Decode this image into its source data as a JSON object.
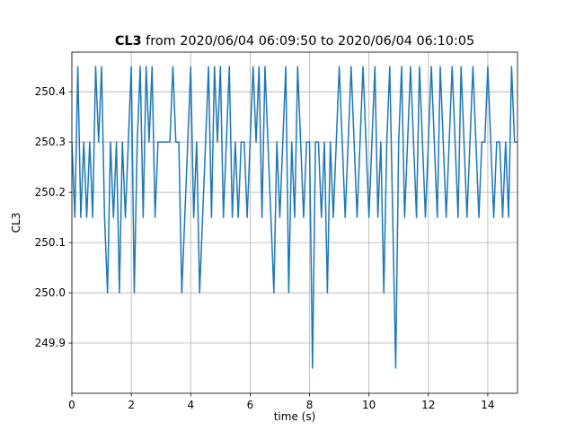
{
  "chart_data": {
    "type": "line",
    "title": {
      "bold": "CL3",
      "text": "from 2020/06/04 06:09:50 to 2020/06/04 06:10:05"
    },
    "xlabel": "time (s)",
    "ylabel": "CL3",
    "xlim": [
      0,
      15
    ],
    "xticks": [
      0,
      2,
      4,
      6,
      8,
      10,
      12,
      14
    ],
    "ylim": [
      249.8,
      250.479
    ],
    "yticks": [
      249.9,
      {
        "value": 250,
        "label": "250.0"
      },
      250.1,
      250.2,
      250.3,
      250.4
    ],
    "grid": true,
    "x": [
      0,
      0.1,
      0.2,
      0.3,
      0.4,
      0.5,
      0.6,
      0.7,
      0.8,
      0.9,
      1,
      1.1,
      1.2,
      1.3,
      1.4,
      1.5,
      1.6,
      1.7,
      1.8,
      1.9,
      2,
      2.1,
      2.2,
      2.3,
      2.4,
      2.5,
      2.6,
      2.7,
      2.8,
      2.9,
      3,
      3.1,
      3.2,
      3.3,
      3.4,
      3.5,
      3.6,
      3.7,
      3.8,
      3.9,
      4,
      4.1,
      4.2,
      4.3,
      4.4,
      4.5,
      4.6,
      4.7,
      4.8,
      4.9,
      5,
      5.1,
      5.2,
      5.3,
      5.4,
      5.5,
      5.6,
      5.7,
      5.8,
      5.9,
      6,
      6.1,
      6.2,
      6.3,
      6.4,
      6.5,
      6.6,
      6.7,
      6.8,
      6.9,
      7,
      7.1,
      7.2,
      7.3,
      7.4,
      7.5,
      7.6,
      7.7,
      7.8,
      7.9,
      8,
      8.1,
      8.2,
      8.3,
      8.4,
      8.5,
      8.6,
      8.7,
      8.8,
      8.9,
      9,
      9.1,
      9.2,
      9.3,
      9.4,
      9.5,
      9.6,
      9.7,
      9.8,
      9.9,
      10,
      10.1,
      10.2,
      10.3,
      10.4,
      10.5,
      10.6,
      10.7,
      10.8,
      10.9,
      11,
      11.1,
      11.2,
      11.3,
      11.4,
      11.5,
      11.6,
      11.7,
      11.8,
      11.9,
      12,
      12.1,
      12.2,
      12.3,
      12.4,
      12.5,
      12.6,
      12.7,
      12.8,
      12.9,
      13,
      13.1,
      13.2,
      13.3,
      13.4,
      13.5,
      13.6,
      13.7,
      13.8,
      13.9,
      14,
      14.1,
      14.2,
      14.3,
      14.4,
      14.5,
      14.6,
      14.7,
      14.8,
      14.9,
      15
    ],
    "series": [
      {
        "name": "CL3",
        "color": "#1f77b4",
        "values": [
          250.3,
          250.15,
          250.45,
          250.15,
          250.3,
          250.15,
          250.3,
          250.15,
          250.45,
          250.3,
          250.45,
          250.15,
          250.0,
          250.3,
          250.15,
          250.3,
          250.0,
          250.3,
          250.15,
          250.3,
          250.45,
          250.0,
          250.3,
          250.45,
          250.15,
          250.45,
          250.3,
          250.45,
          250.15,
          250.3,
          250.3,
          250.3,
          250.3,
          250.3,
          250.45,
          250.3,
          250.3,
          250.0,
          250.15,
          250.3,
          250.45,
          250.15,
          250.3,
          250.0,
          250.15,
          250.3,
          250.45,
          250.15,
          250.45,
          250.3,
          250.45,
          250.15,
          250.3,
          250.45,
          250.15,
          250.3,
          250.15,
          250.3,
          250.3,
          250.15,
          250.3,
          250.45,
          250.3,
          250.45,
          250.15,
          250.45,
          250.3,
          250.15,
          250.0,
          250.3,
          250.15,
          250.3,
          250.45,
          250.0,
          250.3,
          250.15,
          250.45,
          250.3,
          250.15,
          250.3,
          250.3,
          249.85,
          250.3,
          250.3,
          250.15,
          250.3,
          250.0,
          250.3,
          250.15,
          250.3,
          250.45,
          250.3,
          250.15,
          250.3,
          250.45,
          250.3,
          250.15,
          250.3,
          250.45,
          250.3,
          250.15,
          250.3,
          250.45,
          250.15,
          250.3,
          250.0,
          250.3,
          250.45,
          250.15,
          249.85,
          250.3,
          250.45,
          250.15,
          250.3,
          250.45,
          250.3,
          250.15,
          250.45,
          250.3,
          250.15,
          250.3,
          250.45,
          250.3,
          250.15,
          250.45,
          250.3,
          250.15,
          250.3,
          250.45,
          250.3,
          250.15,
          250.45,
          250.3,
          250.15,
          250.3,
          250.45,
          250.3,
          250.15,
          250.3,
          250.3,
          250.45,
          250.3,
          250.15,
          250.3,
          250.3,
          250.15,
          250.3,
          250.15,
          250.45,
          250.3,
          250.3
        ]
      }
    ]
  }
}
